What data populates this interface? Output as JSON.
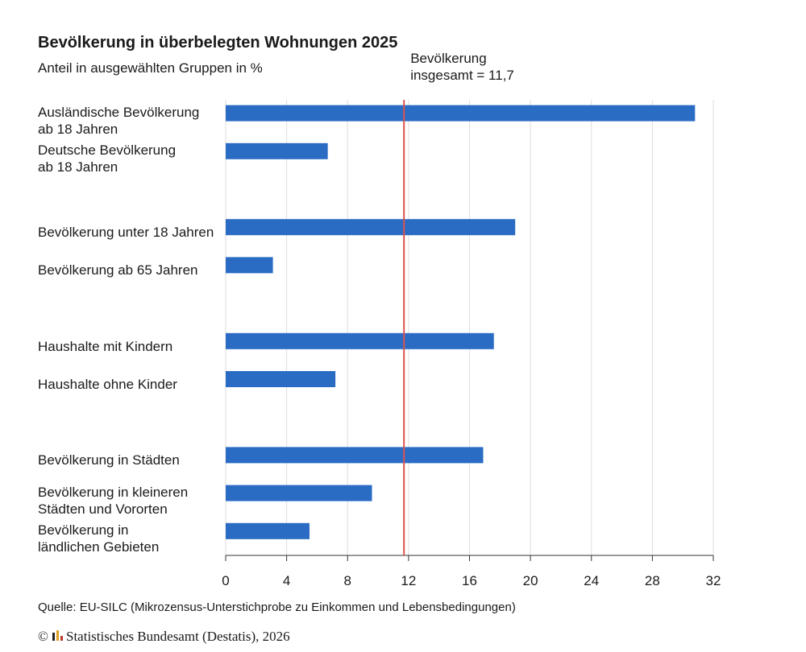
{
  "chart_data": {
    "type": "bar",
    "orientation": "horizontal",
    "title": "Bevölkerung in überbelegten Wohnungen 2025",
    "subtitle": "Anteil in ausgewählten Gruppen in %",
    "categories": [
      "Ausländische Bevölkerung\nab 18 Jahren",
      "Deutsche Bevölkerung\nab 18 Jahren",
      null,
      "Bevölkerung unter 18 Jahren",
      "Bevölkerung ab 65 Jahren",
      null,
      "Haushalte mit Kindern",
      "Haushalte ohne Kinder",
      null,
      "Bevölkerung in Städten",
      "Bevölkerung in kleineren\nStädten und Vororten",
      "Bevölkerung in\nländlichen Gebieten"
    ],
    "values": [
      30.8,
      6.7,
      null,
      19.0,
      3.1,
      null,
      17.6,
      7.2,
      null,
      16.9,
      9.6,
      5.5
    ],
    "color": "#2a6cc4",
    "xlim": [
      0,
      32
    ],
    "xticks": [
      0,
      4,
      8,
      12,
      16,
      20,
      24,
      28,
      32
    ],
    "grid": true,
    "reference_line": {
      "value": 11.7,
      "label": "Bevölkerung\ninsgesamt = 11,7",
      "color": "#d9534f"
    },
    "source": "Quelle: EU-SILC (Mikrozensus-Unterstichprobe zu Einkommen und Lebensbedingungen)",
    "copyright_symbol": "©",
    "footer": "Statistisches Bundesamt (Destatis), 2026"
  }
}
